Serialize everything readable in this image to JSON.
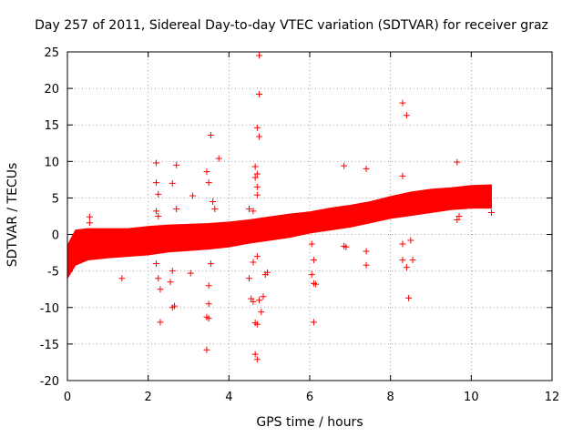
{
  "chart_data": {
    "type": "scatter",
    "title": "Day 257 of 2011, Sidereal Day-to-day VTEC variation (SDTVAR) for receiver graz",
    "xlabel": "GPS time / hours",
    "ylabel": "SDTVAR / TECUs",
    "xlim": [
      0,
      12
    ],
    "ylim": [
      -20,
      25
    ],
    "xticks": [
      0,
      2,
      4,
      6,
      8,
      10,
      12
    ],
    "yticks": [
      -20,
      -15,
      -10,
      -5,
      0,
      5,
      10,
      15,
      20,
      25
    ],
    "grid": true,
    "marker": "+",
    "series_color": "#ff0000",
    "band": {
      "name": "SDTVAR dense band",
      "x": [
        0.0,
        0.2,
        0.5,
        1.0,
        1.5,
        2.0,
        2.5,
        3.0,
        3.5,
        4.0,
        4.5,
        5.0,
        5.5,
        6.0,
        6.5,
        7.0,
        7.5,
        8.0,
        8.5,
        9.0,
        9.5,
        10.0,
        10.5
      ],
      "lower": [
        -6.0,
        -4.2,
        -3.5,
        -3.2,
        -3.0,
        -2.8,
        -2.4,
        -2.2,
        -2.0,
        -1.7,
        -1.2,
        -0.8,
        -0.4,
        0.2,
        0.6,
        1.0,
        1.6,
        2.2,
        2.6,
        3.0,
        3.4,
        3.6,
        3.6
      ],
      "upper": [
        -1.5,
        0.6,
        0.8,
        0.8,
        0.8,
        1.1,
        1.3,
        1.4,
        1.5,
        1.7,
        2.0,
        2.4,
        2.8,
        3.1,
        3.6,
        4.0,
        4.5,
        5.2,
        5.8,
        6.2,
        6.4,
        6.7,
        6.8
      ]
    },
    "points": [
      [
        0.55,
        2.4
      ],
      [
        0.55,
        1.6
      ],
      [
        1.35,
        -6.0
      ],
      [
        2.2,
        9.8
      ],
      [
        2.2,
        7.1
      ],
      [
        2.25,
        5.5
      ],
      [
        2.2,
        3.2
      ],
      [
        2.25,
        2.5
      ],
      [
        2.3,
        -12.0
      ],
      [
        2.2,
        -4.0
      ],
      [
        2.25,
        -6.0
      ],
      [
        2.3,
        -7.5
      ],
      [
        2.6,
        7.0
      ],
      [
        2.7,
        9.5
      ],
      [
        2.7,
        3.5
      ],
      [
        2.6,
        -10.0
      ],
      [
        2.65,
        -9.8
      ],
      [
        2.55,
        -6.5
      ],
      [
        2.6,
        -5.0
      ],
      [
        3.1,
        5.3
      ],
      [
        3.05,
        -5.3
      ],
      [
        3.45,
        8.6
      ],
      [
        3.5,
        7.1
      ],
      [
        3.55,
        13.6
      ],
      [
        3.75,
        10.4
      ],
      [
        3.6,
        4.5
      ],
      [
        3.65,
        3.5
      ],
      [
        3.45,
        -15.8
      ],
      [
        3.5,
        -11.5
      ],
      [
        3.45,
        -11.3
      ],
      [
        3.5,
        -9.5
      ],
      [
        3.5,
        -7.0
      ],
      [
        3.55,
        -4.0
      ],
      [
        4.5,
        3.5
      ],
      [
        4.6,
        3.2
      ],
      [
        4.65,
        9.3
      ],
      [
        4.7,
        8.3
      ],
      [
        4.65,
        7.8
      ],
      [
        4.7,
        6.5
      ],
      [
        4.7,
        5.4
      ],
      [
        4.75,
        24.5
      ],
      [
        4.75,
        19.2
      ],
      [
        4.7,
        14.6
      ],
      [
        4.75,
        13.4
      ],
      [
        4.5,
        -6.0
      ],
      [
        4.55,
        -8.8
      ],
      [
        4.6,
        -9.2
      ],
      [
        4.65,
        -12.1
      ],
      [
        4.7,
        -12.3
      ],
      [
        4.65,
        -16.4
      ],
      [
        4.7,
        -17.1
      ],
      [
        4.8,
        -10.6
      ],
      [
        4.75,
        -9.0
      ],
      [
        4.85,
        -8.5
      ],
      [
        4.9,
        -5.5
      ],
      [
        4.95,
        -5.2
      ],
      [
        4.6,
        -3.8
      ],
      [
        4.7,
        -3.0
      ],
      [
        6.05,
        -1.3
      ],
      [
        6.1,
        -3.5
      ],
      [
        6.05,
        -5.5
      ],
      [
        6.1,
        -6.7
      ],
      [
        6.15,
        -6.8
      ],
      [
        6.1,
        -12.0
      ],
      [
        6.85,
        9.4
      ],
      [
        6.85,
        -1.6
      ],
      [
        6.9,
        -1.7
      ],
      [
        7.4,
        9.0
      ],
      [
        7.4,
        -2.3
      ],
      [
        7.4,
        -4.2
      ],
      [
        8.3,
        18.0
      ],
      [
        8.4,
        16.3
      ],
      [
        8.3,
        8.0
      ],
      [
        8.3,
        -1.3
      ],
      [
        8.3,
        -3.5
      ],
      [
        8.4,
        -4.5
      ],
      [
        8.45,
        -8.7
      ],
      [
        8.55,
        -3.5
      ],
      [
        8.5,
        -0.8
      ],
      [
        9.65,
        9.9
      ],
      [
        9.65,
        2.0
      ],
      [
        9.7,
        2.5
      ],
      [
        10.5,
        3.0
      ]
    ]
  }
}
